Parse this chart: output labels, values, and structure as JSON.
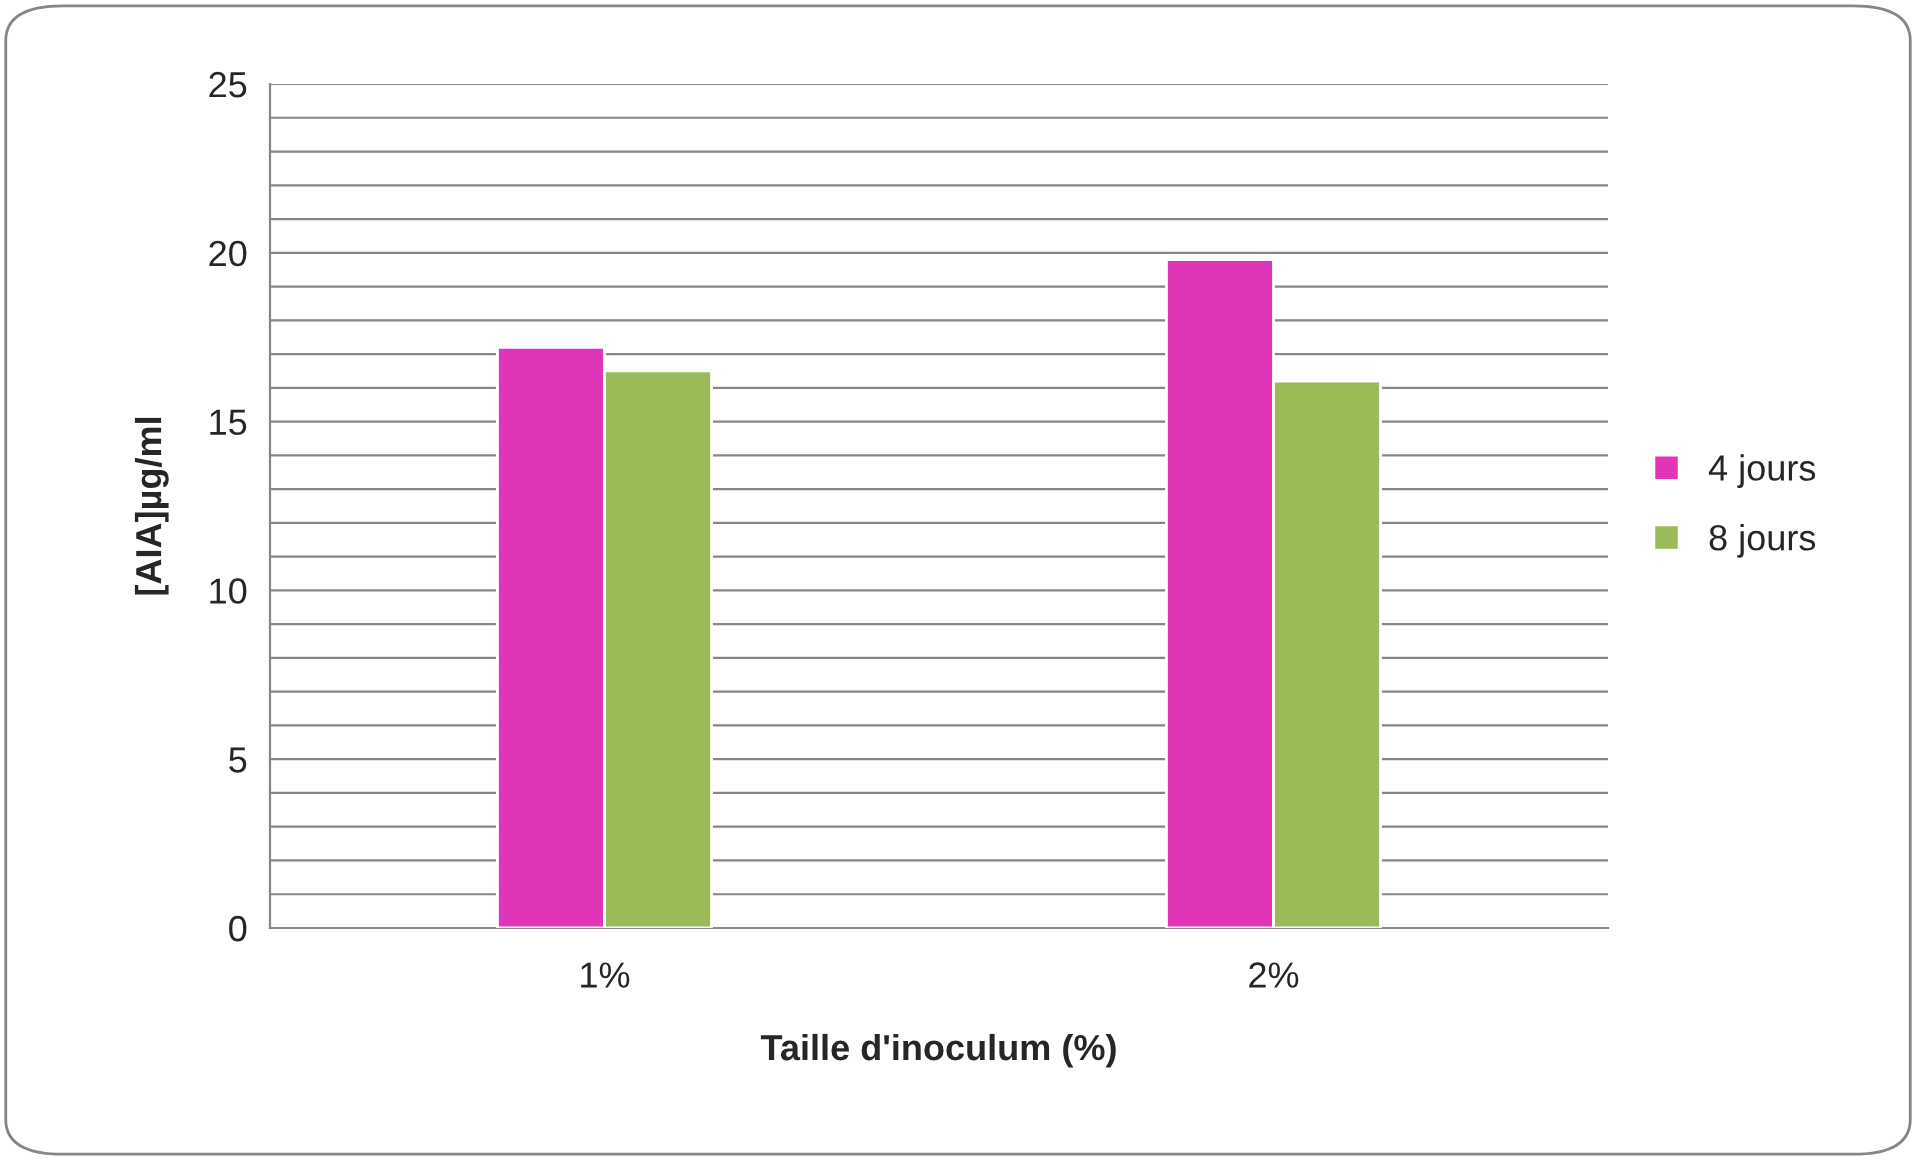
{
  "chart_data": {
    "type": "bar",
    "xlabel": "Taille d'inoculum (%)",
    "ylabel": "[AIA]µg/ml",
    "categories": [
      "1%",
      "2%"
    ],
    "series": [
      {
        "name": "4 jours",
        "color": "#e035b9",
        "values": [
          17.2,
          19.8
        ]
      },
      {
        "name": "8 jours",
        "color": "#9bbb59",
        "values": [
          16.5,
          16.2
        ]
      }
    ],
    "ylim": [
      0,
      25
    ],
    "yticks": [
      0,
      {
        "value": 1,
        "label": null
      },
      {
        "value": 2,
        "label": null
      },
      {
        "value": 3,
        "label": null
      },
      {
        "value": 4,
        "label": null
      },
      5,
      {
        "value": 6,
        "label": null
      },
      {
        "value": 7,
        "label": null
      },
      {
        "value": 8,
        "label": null
      },
      {
        "value": 9,
        "label": null
      },
      10,
      {
        "value": 11,
        "label": null
      },
      {
        "value": 12,
        "label": null
      },
      {
        "value": 13,
        "label": null
      },
      {
        "value": 14,
        "label": null
      },
      15,
      {
        "value": 16,
        "label": null
      },
      {
        "value": 17,
        "label": null
      },
      {
        "value": 18,
        "label": null
      },
      {
        "value": 19,
        "label": null
      },
      20,
      {
        "value": 21,
        "label": null
      },
      {
        "value": 22,
        "label": null
      },
      {
        "value": 23,
        "label": null
      },
      {
        "value": 24,
        "label": null
      },
      25
    ],
    "grid": "y",
    "legend": "right"
  }
}
